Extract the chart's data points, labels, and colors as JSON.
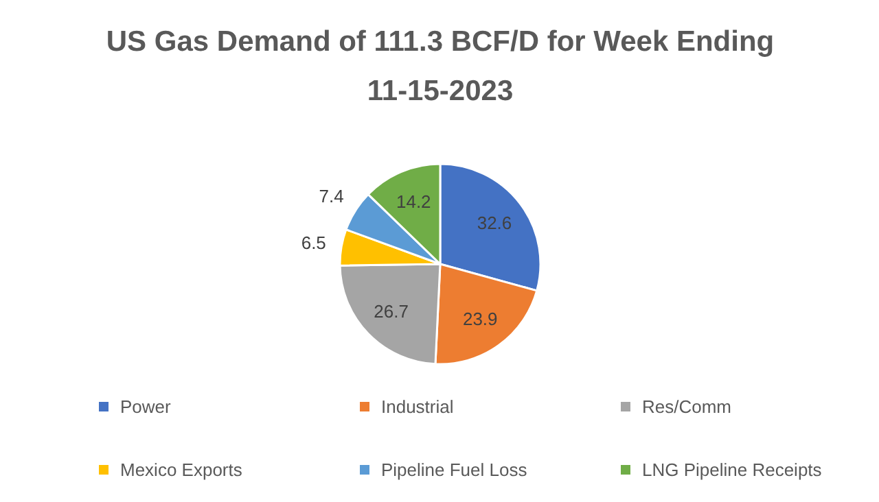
{
  "chart_data": {
    "type": "pie",
    "title": "US Gas Demand of 111.3 BCF/D for Week Ending\n11-15-2023",
    "categories": [
      "Power",
      "Industrial",
      "Res/Comm",
      "Mexico Exports",
      "Pipeline Fuel Loss",
      "LNG Pipeline Receipts"
    ],
    "values": [
      32.6,
      23.9,
      26.7,
      6.5,
      7.4,
      14.2
    ],
    "colors": [
      "#4472c4",
      "#ed7d31",
      "#a5a5a5",
      "#ffc000",
      "#5b9bd5",
      "#70ad47"
    ],
    "data_labels": true,
    "legend": "bottom"
  }
}
